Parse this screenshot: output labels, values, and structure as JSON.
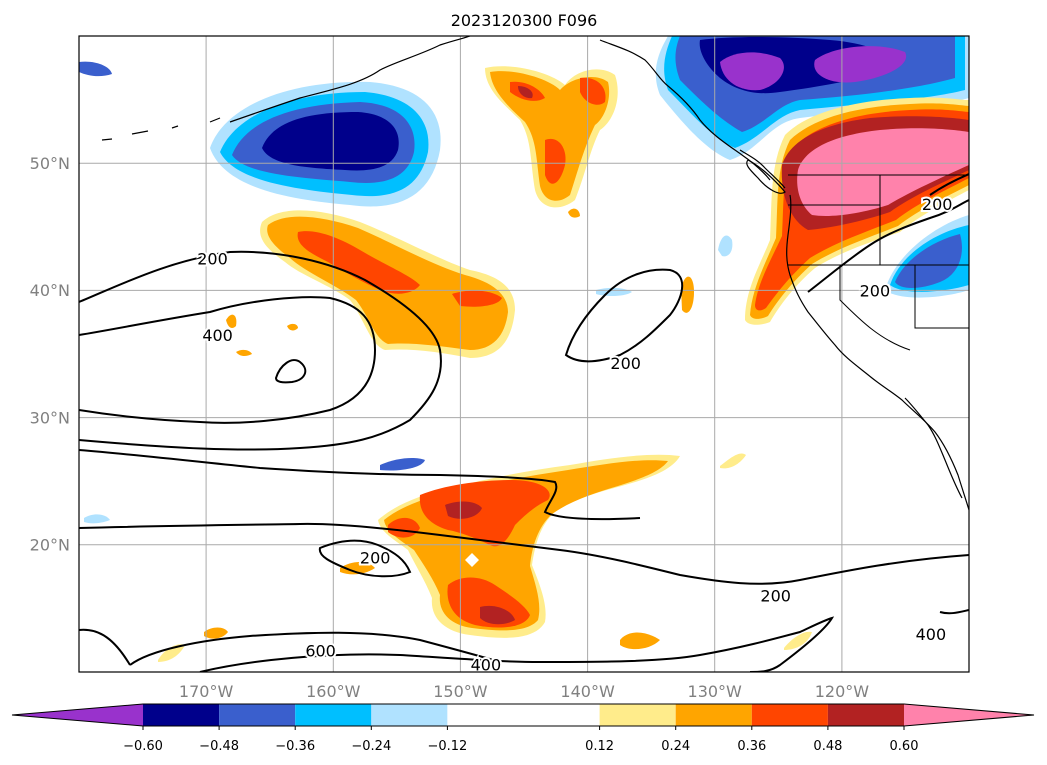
{
  "title": "2023120300 F096",
  "map": {
    "projection": "PlateCarree",
    "lon_range": [
      -180,
      -110
    ],
    "lat_range": [
      10,
      60
    ],
    "gridlines": true,
    "lon_ticks": [
      {
        "value": -170,
        "label": "170°W"
      },
      {
        "value": -160,
        "label": "160°W"
      },
      {
        "value": -150,
        "label": "150°W"
      },
      {
        "value": -140,
        "label": "140°W"
      },
      {
        "value": -130,
        "label": "130°W"
      },
      {
        "value": -120,
        "label": "120°W"
      }
    ],
    "lat_ticks": [
      {
        "value": 20,
        "label": "20°N"
      },
      {
        "value": 30,
        "label": "30°N"
      },
      {
        "value": 40,
        "label": "40°N"
      },
      {
        "value": 50,
        "label": "50°N"
      }
    ]
  },
  "colorbar": {
    "orientation": "horizontal",
    "extend": "both",
    "levels": [
      -0.72,
      -0.6,
      -0.48,
      -0.36,
      -0.24,
      -0.12,
      0.12,
      0.24,
      0.36,
      0.48,
      0.6,
      0.72
    ],
    "tick_labels": [
      "−0.60",
      "−0.48",
      "−0.36",
      "−0.24",
      "−0.12",
      "0.12",
      "0.24",
      "0.36",
      "0.48",
      "0.60"
    ],
    "colors": [
      "#9932cc",
      "#00008b",
      "#3a5fcd",
      "#00bfff",
      "#b0e2ff",
      "#ffffff",
      "#ffec8b",
      "#ffa500",
      "#ff4500",
      "#b22222",
      "#ff82ab"
    ]
  },
  "contour_labels": [
    {
      "text": "200",
      "lon": -169.5,
      "lat": 42.5
    },
    {
      "text": "400",
      "lon": -169.1,
      "lat": 36.5
    },
    {
      "text": "200",
      "lon": -137.0,
      "lat": 34.3
    },
    {
      "text": "200",
      "lon": -117.4,
      "lat": 40.0
    },
    {
      "text": "200",
      "lon": -112.5,
      "lat": 46.8
    },
    {
      "text": "200",
      "lon": -156.7,
      "lat": 19.0
    },
    {
      "text": "200",
      "lon": -125.2,
      "lat": 16.0
    },
    {
      "text": "600",
      "lon": -161.0,
      "lat": 11.7
    },
    {
      "text": "400",
      "lon": -148.0,
      "lat": 10.6
    },
    {
      "text": "400",
      "lon": -113.0,
      "lat": 13.0
    }
  ]
}
